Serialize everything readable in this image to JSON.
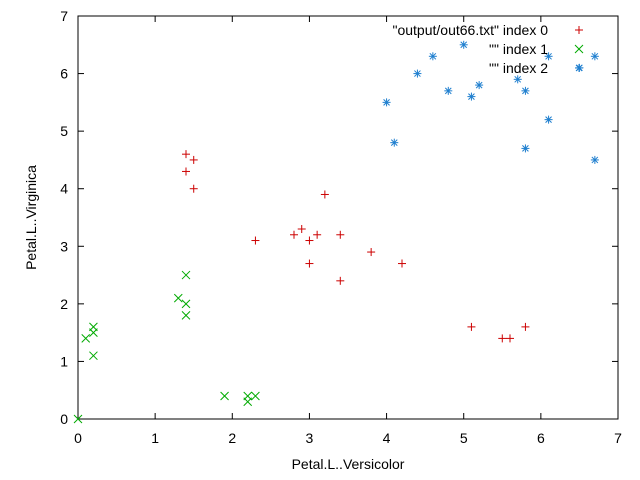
{
  "chart_data": {
    "type": "scatter",
    "xlabel": "Petal.L..Versicolor",
    "ylabel": "Petal.L..Virginica",
    "xlim": [
      0,
      7
    ],
    "ylim": [
      0,
      7
    ],
    "xticks": [
      "0",
      "1",
      "2",
      "3",
      "4",
      "5",
      "6",
      "7"
    ],
    "yticks": [
      "0",
      "1",
      "2",
      "3",
      "4",
      "5",
      "6",
      "7"
    ],
    "grid": false,
    "legend_position": "top-right",
    "series": [
      {
        "name": "\"output/out66.txt\" index 0",
        "marker": "plus",
        "color": "#cc0000",
        "points": [
          [
            1.4,
            4.6
          ],
          [
            1.5,
            4.5
          ],
          [
            1.4,
            4.3
          ],
          [
            1.5,
            4.0
          ],
          [
            3.2,
            3.9
          ],
          [
            2.3,
            3.1
          ],
          [
            2.8,
            3.2
          ],
          [
            2.9,
            3.3
          ],
          [
            3.0,
            3.1
          ],
          [
            3.1,
            3.2
          ],
          [
            3.4,
            3.2
          ],
          [
            3.0,
            2.7
          ],
          [
            3.4,
            2.4
          ],
          [
            3.8,
            2.9
          ],
          [
            4.2,
            2.7
          ],
          [
            5.1,
            1.6
          ],
          [
            5.5,
            1.4
          ],
          [
            5.6,
            1.4
          ],
          [
            5.8,
            1.6
          ]
        ]
      },
      {
        "name": "\"\" index 1",
        "marker": "cross",
        "color": "#00aa00",
        "points": [
          [
            0.0,
            0.0
          ],
          [
            0.1,
            1.4
          ],
          [
            0.2,
            1.5
          ],
          [
            0.2,
            1.6
          ],
          [
            0.2,
            1.1
          ],
          [
            1.3,
            2.1
          ],
          [
            1.4,
            2.0
          ],
          [
            1.4,
            2.5
          ],
          [
            1.4,
            1.8
          ],
          [
            1.9,
            0.4
          ],
          [
            2.2,
            0.3
          ],
          [
            2.2,
            0.4
          ],
          [
            2.3,
            0.4
          ]
        ]
      },
      {
        "name": "\"\" index 2",
        "marker": "star",
        "color": "#1f7fcf",
        "points": [
          [
            4.0,
            5.5
          ],
          [
            4.1,
            4.8
          ],
          [
            4.4,
            6.0
          ],
          [
            4.6,
            6.3
          ],
          [
            4.8,
            5.7
          ],
          [
            5.0,
            6.5
          ],
          [
            5.1,
            5.6
          ],
          [
            5.2,
            5.8
          ],
          [
            5.7,
            5.9
          ],
          [
            5.8,
            5.7
          ],
          [
            5.8,
            4.7
          ],
          [
            6.1,
            5.2
          ],
          [
            6.1,
            6.3
          ],
          [
            6.5,
            6.1
          ],
          [
            6.7,
            6.3
          ],
          [
            6.7,
            4.5
          ]
        ]
      }
    ]
  }
}
